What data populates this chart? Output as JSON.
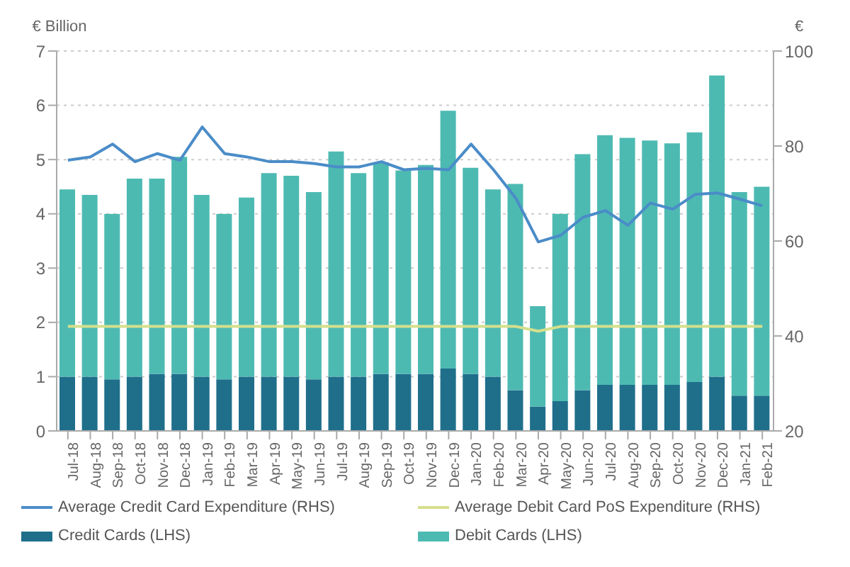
{
  "chart_data": {
    "type": "bar",
    "stacked": true,
    "ylabel": "€ Billion",
    "y2label": "€",
    "categories": [
      "Jul-18",
      "Aug-18",
      "Sep-18",
      "Oct-18",
      "Nov-18",
      "Dec-18",
      "Jan-19",
      "Feb-19",
      "Mar-19",
      "Apr-19",
      "May-19",
      "Jun-19",
      "Jul-19",
      "Aug-19",
      "Sep-19",
      "Oct-19",
      "Nov-19",
      "Dec-19",
      "Jan-20",
      "Feb-20",
      "Mar-20",
      "Apr-20",
      "May-20",
      "Jun-20",
      "Jul-20",
      "Aug-20",
      "Sep-20",
      "Oct-20",
      "Nov-20",
      "Dec-20",
      "Jan-21",
      "Feb-21"
    ],
    "series": [
      {
        "name": "Credit Cards (LHS)",
        "color": "#1f6f8b",
        "values": [
          1.0,
          1.0,
          0.95,
          1.0,
          1.05,
          1.05,
          1.0,
          0.95,
          1.0,
          1.0,
          1.0,
          0.95,
          1.0,
          1.0,
          1.05,
          1.05,
          1.05,
          1.15,
          1.05,
          1.0,
          0.75,
          0.45,
          0.55,
          0.75,
          0.85,
          0.85,
          0.85,
          0.85,
          0.9,
          1.0,
          0.65,
          0.65
        ]
      },
      {
        "name": "Debit Cards (LHS)",
        "color": "#4dbab2",
        "values": [
          3.45,
          3.35,
          3.05,
          3.65,
          3.6,
          4.0,
          3.35,
          3.05,
          3.3,
          3.75,
          3.7,
          3.45,
          4.15,
          3.75,
          3.9,
          3.75,
          3.85,
          4.75,
          3.8,
          3.45,
          3.8,
          1.85,
          3.45,
          4.35,
          4.6,
          4.55,
          4.5,
          4.45,
          4.6,
          5.55,
          3.75,
          3.85
        ]
      },
      {
        "name": "Average Credit Card Expenditure (RHS)",
        "type": "line",
        "axis": "y2",
        "color": "#4a8cc8",
        "values": [
          77,
          77.7,
          80.4,
          76.7,
          78.4,
          77,
          84,
          78.4,
          77.7,
          76.7,
          76.7,
          76.3,
          75.6,
          75.6,
          76.7,
          75,
          75.3,
          75,
          80.4,
          75,
          69,
          59.8,
          61.2,
          65,
          66.4,
          63.3,
          68,
          66.7,
          69.8,
          70.1,
          68.8,
          67.4
        ]
      },
      {
        "name": "Average Debit Card PoS Expenditure (RHS)",
        "type": "line",
        "axis": "y2",
        "color": "#d5df8c",
        "values": [
          42,
          42,
          42,
          42,
          42,
          42,
          42,
          42,
          42,
          42,
          42,
          42,
          42,
          42,
          42,
          42,
          42,
          42,
          42,
          42,
          42,
          41,
          42,
          42,
          42,
          42,
          42,
          42,
          42,
          42,
          42,
          42
        ]
      }
    ],
    "ylim": [
      0,
      7
    ],
    "yticks": [
      0,
      1,
      2,
      3,
      4,
      5,
      6,
      7
    ],
    "y2lim": [
      20,
      100
    ],
    "y2ticks": [
      20,
      40,
      60,
      80,
      100
    ],
    "grid": "y",
    "legend": "bottom",
    "marker": "none",
    "line_style": "solid"
  }
}
